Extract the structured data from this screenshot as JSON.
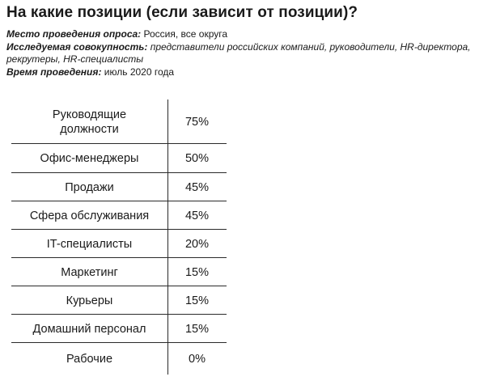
{
  "title": "На какие позиции (если зависит от позиции)?",
  "meta": {
    "place_key": "Место проведения опроса:",
    "place_value": "Россия, все округа",
    "population_key": "Исследуемая совокупность:",
    "population_value_line1": "представители российских компаний, руководители, HR-директора,",
    "population_value_line2": "рекрутеры, HR-специалисты",
    "time_key": "Время проведения:",
    "time_value": "июль 2020 года"
  },
  "chart_data": {
    "type": "table",
    "categories": [
      "Руководящие должности",
      "Офис-менеджеры",
      "Продажи",
      "Сфера обслуживания",
      "IT-специалисты",
      "Маркетинг",
      "Курьеры",
      "Домашний персонал",
      "Рабочие"
    ],
    "values": [
      75,
      50,
      45,
      45,
      20,
      15,
      15,
      15,
      0
    ],
    "value_labels": [
      "75%",
      "50%",
      "45%",
      "45%",
      "20%",
      "15%",
      "15%",
      "15%",
      "0%"
    ],
    "unit": "%"
  }
}
